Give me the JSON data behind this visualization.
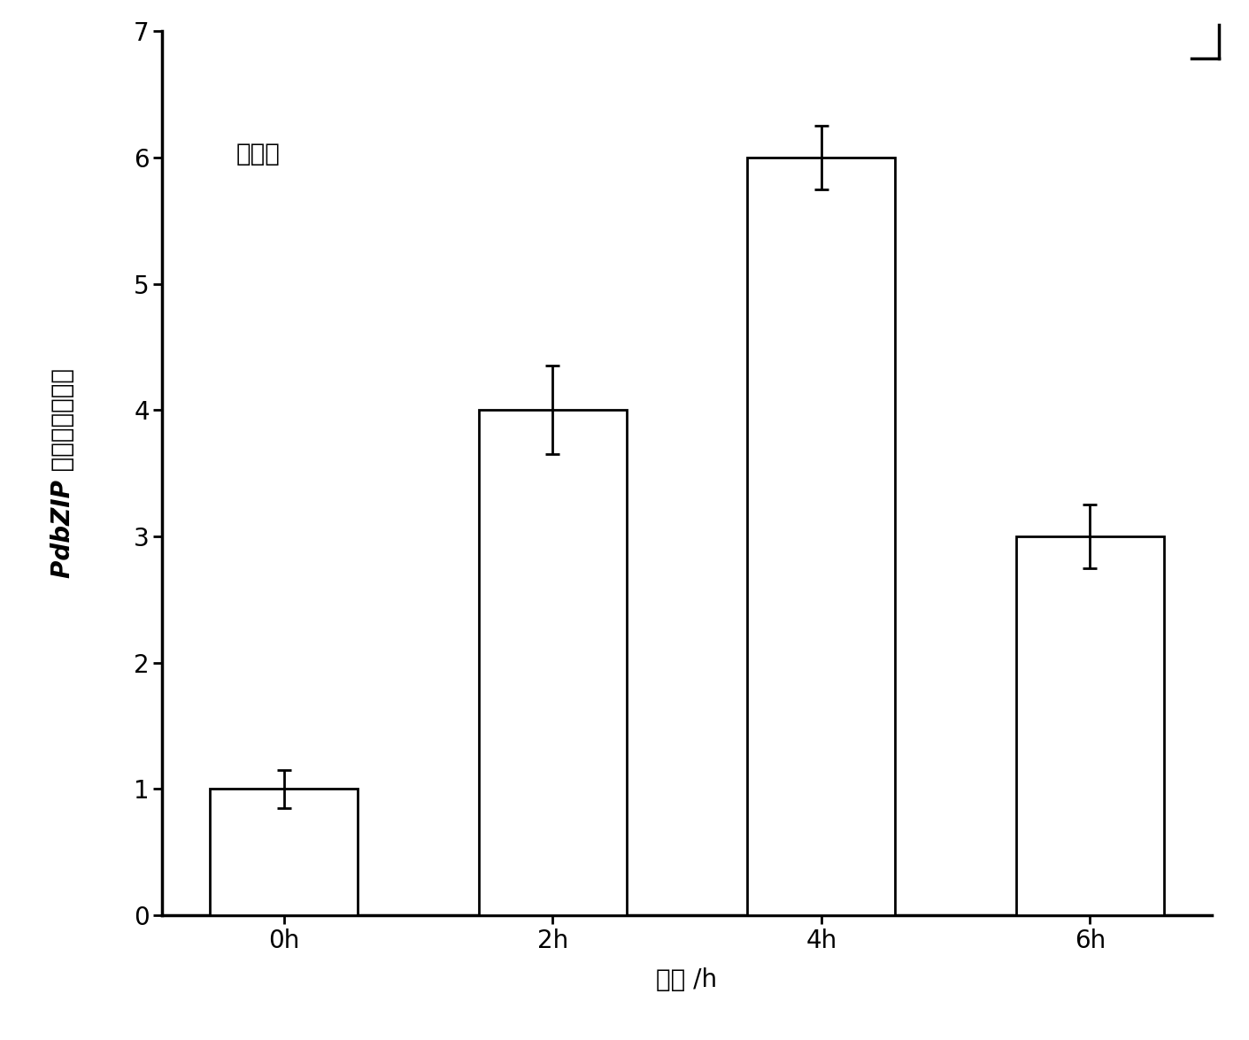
{
  "categories": [
    "0h",
    "2h",
    "4h",
    "6h"
  ],
  "values": [
    1.0,
    4.0,
    6.0,
    3.0
  ],
  "errors": [
    0.15,
    0.35,
    0.25,
    0.25
  ],
  "bar_color": "#ffffff",
  "bar_edgecolor": "#000000",
  "bar_linewidth": 2.0,
  "bar_width": 0.55,
  "xlabel": "时间 /h",
  "ylabel_prefix": "PdbZIP ",
  "ylabel_suffix": "基因相对表达量",
  "annotation": "盐处理",
  "ylim": [
    0,
    7
  ],
  "yticks": [
    0,
    1,
    2,
    3,
    4,
    5,
    6,
    7
  ],
  "background_color": "#ffffff",
  "axis_fontsize": 20,
  "tick_fontsize": 20,
  "annotation_fontsize": 20,
  "error_capsize": 6,
  "error_linewidth": 2.0,
  "spine_linewidth": 2.5
}
